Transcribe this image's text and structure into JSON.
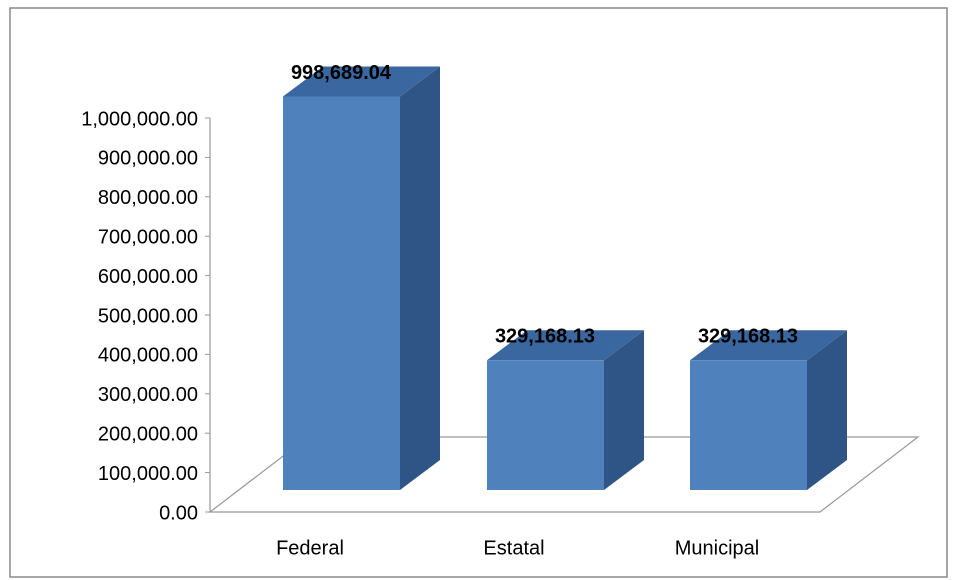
{
  "chart_data": {
    "type": "bar3d",
    "categories": [
      "Federal",
      "Estatal",
      "Municipal"
    ],
    "values": [
      998689.04,
      329168.13,
      329168.13
    ],
    "value_labels": [
      "998,689.04",
      "329,168.13",
      "329,168.13"
    ],
    "color": "#4f81bd",
    "ylim": [
      0,
      1000000
    ],
    "yticks": [
      {
        "value": 0,
        "label": "0.00"
      },
      {
        "value": 100000,
        "label": "100,000.00"
      },
      {
        "value": 200000,
        "label": "200,000.00"
      },
      {
        "value": 300000,
        "label": "300,000.00"
      },
      {
        "value": 400000,
        "label": "400,000.00"
      },
      {
        "value": 500000,
        "label": "500,000.00"
      },
      {
        "value": 600000,
        "label": "600,000.00"
      },
      {
        "value": 700000,
        "label": "700,000.00"
      },
      {
        "value": 800000,
        "label": "800,000.00"
      },
      {
        "value": 900000,
        "label": "900,000.00"
      },
      {
        "value": 1000000,
        "label": "1,000,000.00"
      }
    ]
  }
}
